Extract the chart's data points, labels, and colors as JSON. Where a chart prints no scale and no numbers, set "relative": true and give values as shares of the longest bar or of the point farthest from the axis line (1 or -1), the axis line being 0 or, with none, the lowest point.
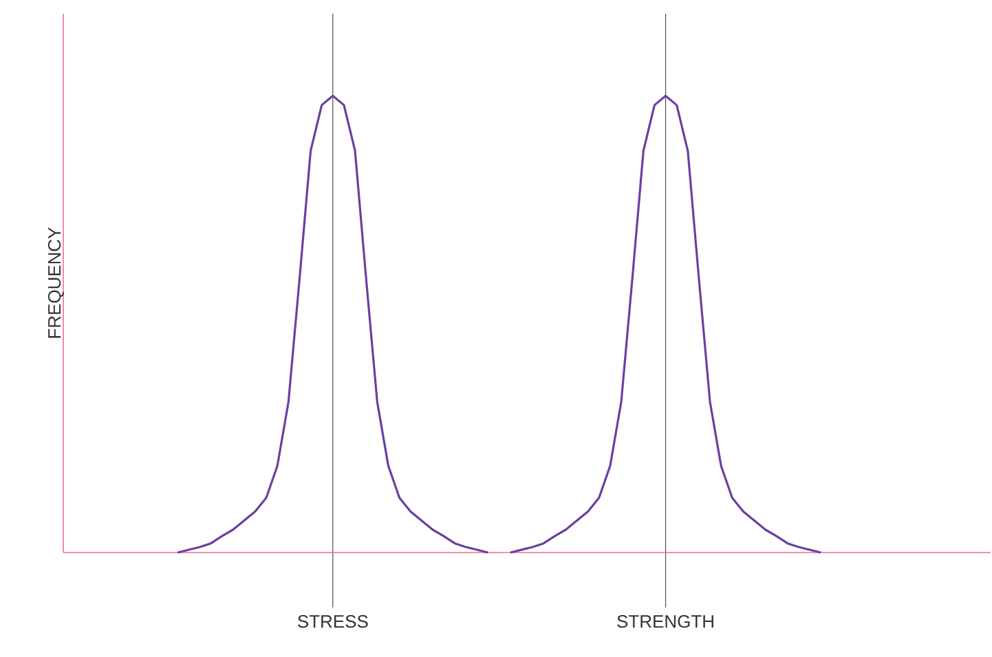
{
  "chart_data": {
    "type": "line",
    "relative": true,
    "xlabel": null,
    "ylabel": "FREQUENCY",
    "color": "#6b3fa0",
    "grid": "x",
    "line_style": "solid",
    "categories": [
      null,
      null,
      null,
      null,
      null,
      null,
      null,
      null,
      null,
      null,
      null,
      null,
      null,
      null,
      null,
      null,
      null,
      null,
      null,
      null,
      null,
      null,
      null,
      null,
      "STRESS",
      null,
      null,
      null,
      null,
      null,
      null,
      null,
      null,
      null,
      null,
      null,
      null,
      null,
      null,
      null,
      null,
      null,
      null,
      null,
      null,
      null,
      null,
      null,
      null,
      null,
      null,
      null,
      null,
      null,
      "STRENGTH",
      null,
      null,
      null,
      null,
      null,
      null,
      null,
      null,
      null,
      null,
      null,
      null,
      null,
      null,
      null,
      null,
      null,
      null,
      null,
      null,
      null,
      null,
      null,
      null,
      null,
      null,
      null,
      null,
      null
    ],
    "values": [
      null,
      null,
      null,
      null,
      null,
      null,
      null,
      null,
      null,
      null,
      0,
      0.006,
      0.012,
      0.02,
      0.036,
      0.05,
      0.07,
      0.09,
      0.12,
      0.19,
      0.33,
      0.6,
      0.88,
      0.98,
      1.0,
      0.98,
      0.88,
      0.6,
      0.33,
      0.19,
      0.12,
      0.09,
      0.07,
      0.05,
      0.036,
      0.02,
      0.012,
      0.006,
      0,
      null,
      0,
      0.006,
      0.012,
      0.02,
      0.036,
      0.05,
      0.07,
      0.09,
      0.12,
      0.19,
      0.33,
      0.6,
      0.88,
      0.98,
      1.0,
      0.98,
      0.88,
      0.6,
      0.33,
      0.19,
      0.12,
      0.09,
      0.07,
      0.05,
      0.036,
      0.02,
      0.012,
      0.006,
      0,
      null,
      null,
      null,
      null,
      null,
      null,
      null,
      null,
      null,
      null,
      null,
      null,
      null,
      null,
      null
    ]
  }
}
